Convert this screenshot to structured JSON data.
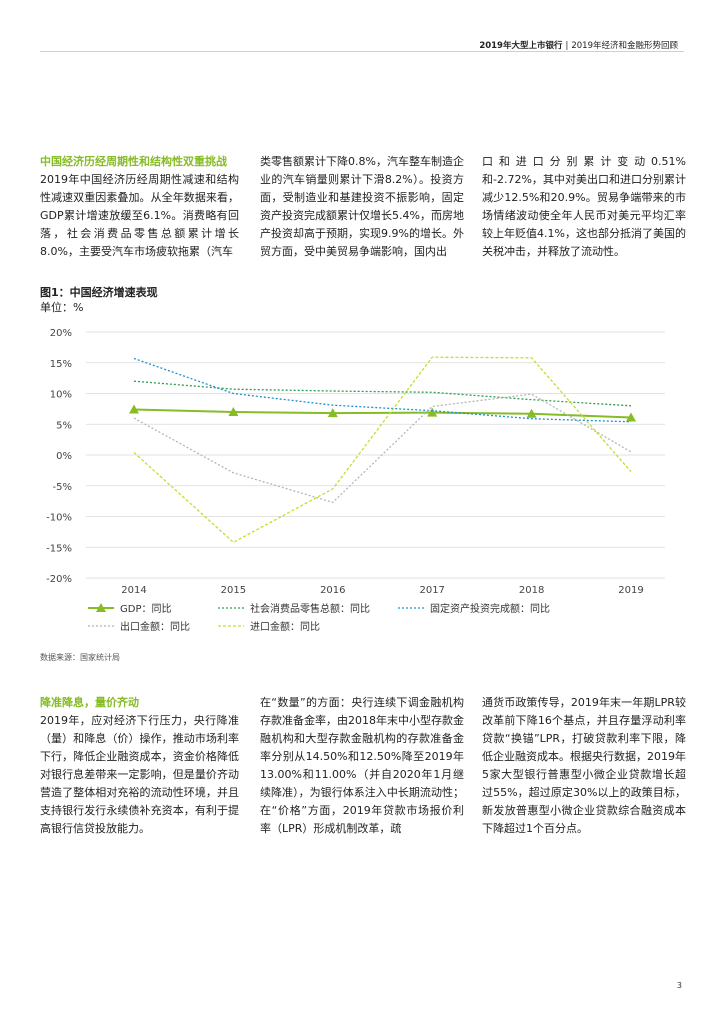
{
  "header": {
    "report": "2019年大型上市银行",
    "separator": "|",
    "subtitle": "2019年经济和金融形势回顾"
  },
  "section1": {
    "title": "中国经济历经周期性和结构性双重挑战",
    "col1": "2019年中国经济历经周期性减速和结构性减速双重因素叠加。从全年数据来看，GDP累计增速放缓至6.1%。消费略有回落，社会消费品零售总额累计增长8.0%，主要受汽车市场疲软拖累（汽车",
    "col2": "类零售额累计下降0.8%，汽车整车制造企业的汽车销量则累计下滑8.2%）。投资方面，受制造业和基建投资不振影响，固定资产投资完成额累计仅增长5.4%，而房地产投资却高于预期，实现9.9%的增长。外贸方面，受中美贸易争端影响，国内出",
    "col3": "口和进口分别累计变动0.51%和-2.72%，其中对美出口和进口分别累计减少12.5%和20.9%。贸易争端带来的市场情绪波动使全年人民币对美元平均汇率较上年贬值4.1%，这也部分抵消了美国的关税冲击，并释放了流动性。"
  },
  "figure": {
    "title": "图1：中国经济增速表现",
    "unit": "单位：%",
    "source": "数据来源：国家统计局"
  },
  "chart_data": {
    "type": "line",
    "x": [
      "2014",
      "2015",
      "2016",
      "2017",
      "2018",
      "2019"
    ],
    "ylim": [
      -20,
      20
    ],
    "y_ticks": [
      20,
      15,
      10,
      5,
      0,
      -5,
      -10,
      -15,
      -20
    ],
    "y_tick_labels": [
      "20%",
      "15%",
      "10%",
      "5%",
      "0%",
      "-5%",
      "-10%",
      "-15%",
      "-20%"
    ],
    "grid": true,
    "legend_position": "bottom",
    "series": [
      {
        "name": "GDP：同比",
        "values": [
          7.4,
          7.0,
          6.8,
          6.9,
          6.7,
          6.1
        ],
        "color": "#86bc25",
        "style": "solid-triangle"
      },
      {
        "name": "社会消费品零售总额：同比",
        "values": [
          12.0,
          10.7,
          10.4,
          10.2,
          9.0,
          8.0
        ],
        "color": "#2e9c4f",
        "style": "dotted"
      },
      {
        "name": "固定资产投资完成额：同比",
        "values": [
          15.7,
          10.0,
          8.1,
          7.2,
          5.9,
          5.4
        ],
        "color": "#1d8fcf",
        "style": "dotted"
      },
      {
        "name": "出口金额：同比",
        "values": [
          6.0,
          -2.9,
          -7.7,
          7.9,
          9.9,
          0.51
        ],
        "color": "#b5b5b5",
        "style": "dotted"
      },
      {
        "name": "进口金额：同比",
        "values": [
          0.4,
          -14.2,
          -5.5,
          15.9,
          15.8,
          -2.72
        ],
        "color": "#c6dc32",
        "style": "dashed"
      }
    ]
  },
  "section2": {
    "title": "降准降息，量价齐动",
    "col1": "2019年，应对经济下行压力，央行降准（量）和降息（价）操作，推动市场利率下行，降低企业融资成本，资金价格降低对银行息差带来一定影响，但是量价齐动营造了整体相对充裕的流动性环境，并且支持银行发行永续债补充资本，有利于提高银行信贷投放能力。",
    "col2": "在“数量”的方面：央行连续下调金融机构存款准备金率，由2018年末中小型存款金融机构和大型存款金融机构的存款准备金率分别从14.50%和12.50%降至2019年13.00%和11.00%（并自2020年1月继续降准），为银行体系注入中长期流动性；在“价格”方面，2019年贷款市场报价利率（LPR）形成机制改革，疏",
    "col3": "通货币政策传导，2019年末一年期LPR较改革前下降16个基点，并且存量浮动利率贷款“换锚”LPR，打破贷款利率下限，降低企业融资成本。根据央行数据，2019年5家大型银行普惠型小微企业贷款增长超过55%，超过原定30%以上的政策目标，新发放普惠型小微企业贷款综合融资成本下降超过1个百分点。"
  },
  "page_number": "3"
}
